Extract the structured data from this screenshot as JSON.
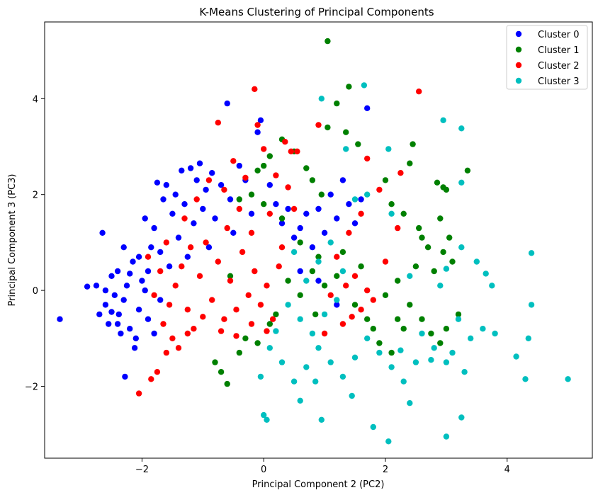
{
  "chart_data": {
    "type": "scatter",
    "title": "K-Means Clustering of Principal Components",
    "xlabel": "Principal Component 2 (PC2)",
    "ylabel": "Principal Component 3 (PC3)",
    "xlim": [
      -3.6,
      5.4
    ],
    "ylim": [
      -3.5,
      5.6
    ],
    "xticks": [
      -2,
      0,
      2,
      4
    ],
    "yticks": [
      -2,
      0,
      2,
      4
    ],
    "grid": false,
    "legend_position": "top-right",
    "series": [
      {
        "name": "Cluster 0",
        "color": "#0000ff",
        "points": [
          [
            -3.35,
            -0.6
          ],
          [
            -2.9,
            0.08
          ],
          [
            -2.75,
            0.1
          ],
          [
            -2.7,
            -0.5
          ],
          [
            -2.6,
            -0.3
          ],
          [
            -2.55,
            -0.7
          ],
          [
            -2.5,
            0.3
          ],
          [
            -2.45,
            -0.1
          ],
          [
            -2.4,
            0.4
          ],
          [
            -2.38,
            -0.5
          ],
          [
            -2.3,
            -0.2
          ],
          [
            -2.28,
            -1.8
          ],
          [
            -2.25,
            0.1
          ],
          [
            -2.2,
            -0.8
          ],
          [
            -2.15,
            0.6
          ],
          [
            -2.1,
            -1.0
          ],
          [
            -2.05,
            -0.4
          ],
          [
            -2.0,
            0.2
          ],
          [
            -1.95,
            1.5
          ],
          [
            -1.9,
            -0.6
          ],
          [
            -1.85,
            0.9
          ],
          [
            -1.8,
            1.3
          ],
          [
            -1.75,
            2.25
          ],
          [
            -1.7,
            -0.2
          ],
          [
            -1.65,
            1.9
          ],
          [
            -1.6,
            2.2
          ],
          [
            -1.55,
            0.5
          ],
          [
            -1.5,
            1.6
          ],
          [
            -1.45,
            2.0
          ],
          [
            -1.4,
            1.1
          ],
          [
            -1.35,
            2.5
          ],
          [
            -1.3,
            1.8
          ],
          [
            -1.25,
            0.7
          ],
          [
            -1.2,
            2.55
          ],
          [
            -1.15,
            1.4
          ],
          [
            -1.1,
            2.3
          ],
          [
            -1.05,
            2.65
          ],
          [
            -1.0,
            1.7
          ],
          [
            -0.95,
            2.1
          ],
          [
            -0.9,
            0.9
          ],
          [
            -0.85,
            2.45
          ],
          [
            -0.8,
            1.5
          ],
          [
            -0.7,
            2.2
          ],
          [
            -0.6,
            3.9
          ],
          [
            -0.55,
            1.9
          ],
          [
            -0.5,
            1.2
          ],
          [
            -0.4,
            2.6
          ],
          [
            -0.3,
            2.3
          ],
          [
            -0.2,
            1.6
          ],
          [
            -0.1,
            3.3
          ],
          [
            -0.05,
            3.55
          ],
          [
            0.1,
            2.2
          ],
          [
            0.2,
            1.8
          ],
          [
            0.3,
            1.4
          ],
          [
            0.4,
            1.7
          ],
          [
            0.5,
            1.1
          ],
          [
            0.6,
            1.3
          ],
          [
            0.7,
            1.6
          ],
          [
            0.8,
            0.9
          ],
          [
            0.9,
            1.7
          ],
          [
            1.0,
            1.2
          ],
          [
            1.1,
            2.0
          ],
          [
            1.2,
            1.5
          ],
          [
            1.3,
            2.3
          ],
          [
            1.4,
            1.8
          ],
          [
            1.5,
            1.4
          ],
          [
            1.6,
            1.9
          ],
          [
            1.7,
            3.8
          ],
          [
            0.6,
            0.4
          ],
          [
            0.9,
            0.2
          ],
          [
            1.2,
            -0.3
          ],
          [
            -2.6,
            0.0
          ],
          [
            -2.35,
            -0.9
          ],
          [
            -2.12,
            -1.2
          ],
          [
            -1.95,
            0.0
          ],
          [
            -1.8,
            -0.9
          ],
          [
            -2.5,
            -0.45
          ],
          [
            -2.4,
            -0.7
          ],
          [
            -2.2,
            0.35
          ],
          [
            -2.05,
            0.7
          ],
          [
            -1.9,
            0.4
          ],
          [
            -1.7,
            0.8
          ],
          [
            -2.3,
            0.9
          ],
          [
            -2.65,
            1.2
          ]
        ]
      },
      {
        "name": "Cluster 1",
        "color": "#008000",
        "points": [
          [
            1.05,
            5.2
          ],
          [
            1.4,
            4.25
          ],
          [
            1.2,
            3.9
          ],
          [
            1.35,
            3.3
          ],
          [
            1.05,
            3.4
          ],
          [
            1.55,
            3.05
          ],
          [
            2.45,
            3.05
          ],
          [
            3.35,
            2.5
          ],
          [
            2.85,
            2.25
          ],
          [
            2.95,
            2.15
          ],
          [
            2.4,
            2.65
          ],
          [
            2.0,
            2.3
          ],
          [
            2.1,
            1.8
          ],
          [
            2.3,
            1.6
          ],
          [
            2.55,
            1.3
          ],
          [
            2.7,
            0.9
          ],
          [
            2.9,
            1.5
          ],
          [
            3.05,
            1.1
          ],
          [
            3.1,
            0.6
          ],
          [
            2.8,
            0.4
          ],
          [
            2.95,
            0.8
          ],
          [
            2.5,
            0.5
          ],
          [
            2.2,
            0.2
          ],
          [
            2.0,
            -0.1
          ],
          [
            2.4,
            -0.3
          ],
          [
            2.6,
            -0.6
          ],
          [
            2.75,
            -0.9
          ],
          [
            2.9,
            -1.1
          ],
          [
            3.0,
            -0.8
          ],
          [
            3.2,
            -0.5
          ],
          [
            2.3,
            -0.8
          ],
          [
            2.1,
            -1.3
          ],
          [
            1.9,
            -1.1
          ],
          [
            1.7,
            -0.6
          ],
          [
            1.5,
            -0.3
          ],
          [
            1.2,
            0.3
          ],
          [
            0.9,
            0.7
          ],
          [
            0.6,
            1.0
          ],
          [
            0.3,
            1.5
          ],
          [
            0.0,
            1.8
          ],
          [
            -0.2,
            2.0
          ],
          [
            -0.4,
            1.9
          ],
          [
            0.3,
            3.15
          ],
          [
            0.1,
            2.8
          ],
          [
            -0.1,
            2.5
          ],
          [
            0.0,
            2.6
          ],
          [
            0.5,
            2.9
          ],
          [
            0.7,
            2.55
          ],
          [
            0.8,
            2.3
          ],
          [
            0.95,
            2.0
          ],
          [
            0.4,
            0.2
          ],
          [
            0.6,
            -0.1
          ],
          [
            0.8,
            0.4
          ],
          [
            1.0,
            0.1
          ],
          [
            0.2,
            -0.5
          ],
          [
            -0.1,
            -1.1
          ],
          [
            -0.4,
            -1.3
          ],
          [
            -0.7,
            -1.7
          ],
          [
            -0.6,
            -1.95
          ],
          [
            -0.8,
            -1.5
          ],
          [
            -0.3,
            -1.0
          ],
          [
            0.1,
            -0.7
          ],
          [
            1.3,
            0.8
          ],
          [
            1.6,
            0.5
          ],
          [
            1.8,
            -0.8
          ],
          [
            2.2,
            -0.6
          ],
          [
            3.0,
            2.1
          ],
          [
            2.6,
            1.1
          ],
          [
            -0.55,
            0.3
          ],
          [
            0.85,
            -0.5
          ]
        ]
      },
      {
        "name": "Cluster 2",
        "color": "#ff0000",
        "points": [
          [
            -1.85,
            -1.85
          ],
          [
            -2.05,
            -2.15
          ],
          [
            -1.75,
            -1.7
          ],
          [
            -1.6,
            -1.3
          ],
          [
            -1.5,
            -1.0
          ],
          [
            -1.4,
            -1.2
          ],
          [
            -1.65,
            -0.7
          ],
          [
            -1.55,
            -0.3
          ],
          [
            -1.45,
            0.1
          ],
          [
            -1.35,
            0.5
          ],
          [
            -1.25,
            -0.4
          ],
          [
            -1.15,
            -0.8
          ],
          [
            -1.05,
            0.3
          ],
          [
            -0.95,
            1.0
          ],
          [
            -0.85,
            -0.2
          ],
          [
            -0.75,
            0.6
          ],
          [
            -0.65,
            -0.6
          ],
          [
            -0.55,
            0.2
          ],
          [
            -0.45,
            -0.4
          ],
          [
            -0.35,
            0.8
          ],
          [
            -0.25,
            -0.1
          ],
          [
            -0.15,
            0.4
          ],
          [
            -0.05,
            -0.3
          ],
          [
            0.05,
            0.1
          ],
          [
            0.15,
            -0.6
          ],
          [
            0.25,
            0.5
          ],
          [
            -1.3,
            1.5
          ],
          [
            -1.1,
            1.9
          ],
          [
            -0.9,
            2.3
          ],
          [
            -0.75,
            3.5
          ],
          [
            -0.65,
            2.1
          ],
          [
            -0.5,
            2.7
          ],
          [
            -0.3,
            2.35
          ],
          [
            -0.15,
            4.2
          ],
          [
            -0.1,
            3.45
          ],
          [
            0.0,
            2.95
          ],
          [
            0.35,
            3.1
          ],
          [
            0.45,
            2.9
          ],
          [
            0.55,
            2.9
          ],
          [
            0.2,
            2.4
          ],
          [
            0.4,
            2.15
          ],
          [
            0.1,
            1.6
          ],
          [
            0.9,
            3.45
          ],
          [
            1.7,
            2.75
          ],
          [
            2.25,
            2.45
          ],
          [
            2.55,
            4.15
          ],
          [
            1.9,
            2.1
          ],
          [
            1.6,
            1.6
          ],
          [
            1.4,
            1.2
          ],
          [
            1.2,
            0.7
          ],
          [
            1.5,
            0.3
          ],
          [
            1.7,
            0.0
          ],
          [
            1.6,
            -0.4
          ],
          [
            1.3,
            -0.7
          ],
          [
            1.0,
            -0.9
          ],
          [
            1.8,
            -0.2
          ],
          [
            2.0,
            0.6
          ],
          [
            2.2,
            1.3
          ],
          [
            1.1,
            -0.1
          ],
          [
            1.35,
            0.1
          ],
          [
            -1.8,
            -0.1
          ],
          [
            -1.7,
            0.4
          ],
          [
            -1.9,
            0.7
          ],
          [
            -1.6,
            1.0
          ],
          [
            -1.2,
            0.9
          ],
          [
            -0.6,
            1.3
          ],
          [
            -0.4,
            1.7
          ],
          [
            -0.2,
            1.2
          ],
          [
            0.3,
            0.9
          ],
          [
            0.5,
            1.7
          ],
          [
            -1.25,
            -0.9
          ],
          [
            -1.0,
            -0.55
          ],
          [
            -0.7,
            -0.85
          ],
          [
            -0.45,
            -0.95
          ],
          [
            -0.2,
            -0.7
          ],
          [
            0.05,
            -0.85
          ],
          [
            1.45,
            -0.55
          ]
        ]
      },
      {
        "name": "Cluster 3",
        "color": "#00bfbf",
        "points": [
          [
            0.95,
            4.0
          ],
          [
            1.65,
            4.28
          ],
          [
            2.05,
            2.95
          ],
          [
            1.35,
            2.95
          ],
          [
            2.95,
            3.55
          ],
          [
            3.25,
            3.38
          ],
          [
            3.25,
            2.25
          ],
          [
            4.4,
            0.78
          ],
          [
            3.75,
            0.1
          ],
          [
            3.5,
            0.6
          ],
          [
            3.65,
            0.35
          ],
          [
            3.8,
            -0.9
          ],
          [
            4.4,
            -0.3
          ],
          [
            4.35,
            -1.0
          ],
          [
            4.15,
            -1.38
          ],
          [
            4.3,
            -1.85
          ],
          [
            5.0,
            -1.85
          ],
          [
            3.2,
            -0.6
          ],
          [
            3.4,
            -1.0
          ],
          [
            3.6,
            -0.8
          ],
          [
            3.1,
            -1.3
          ],
          [
            3.3,
            -1.7
          ],
          [
            3.0,
            -1.5
          ],
          [
            2.8,
            -1.2
          ],
          [
            2.6,
            -0.9
          ],
          [
            2.5,
            -1.5
          ],
          [
            2.3,
            -1.9
          ],
          [
            2.1,
            -1.6
          ],
          [
            1.9,
            -1.3
          ],
          [
            1.7,
            -1.0
          ],
          [
            1.5,
            -1.4
          ],
          [
            1.3,
            -1.8
          ],
          [
            1.1,
            -1.5
          ],
          [
            0.9,
            -1.2
          ],
          [
            0.7,
            -1.6
          ],
          [
            0.5,
            -1.9
          ],
          [
            0.3,
            -1.5
          ],
          [
            0.1,
            -1.2
          ],
          [
            -0.05,
            -1.8
          ],
          [
            0.0,
            -2.6
          ],
          [
            0.05,
            -2.7
          ],
          [
            0.95,
            -2.7
          ],
          [
            1.8,
            -2.85
          ],
          [
            2.05,
            -3.15
          ],
          [
            3.0,
            -3.05
          ],
          [
            3.25,
            -2.65
          ],
          [
            2.4,
            -2.35
          ],
          [
            1.45,
            -2.2
          ],
          [
            0.6,
            -2.3
          ],
          [
            0.4,
            -0.3
          ],
          [
            0.6,
            -0.6
          ],
          [
            0.8,
            -0.9
          ],
          [
            1.0,
            -0.5
          ],
          [
            1.2,
            -0.2
          ],
          [
            0.7,
            0.2
          ],
          [
            0.9,
            0.6
          ],
          [
            1.1,
            1.0
          ],
          [
            1.3,
            0.4
          ],
          [
            0.5,
            0.8
          ],
          [
            1.5,
            1.9
          ],
          [
            1.7,
            2.0
          ],
          [
            2.1,
            1.6
          ],
          [
            3.25,
            0.9
          ],
          [
            2.9,
            0.1
          ],
          [
            3.0,
            0.45
          ],
          [
            2.4,
            0.3
          ],
          [
            2.75,
            -1.45
          ],
          [
            0.2,
            -0.85
          ],
          [
            0.85,
            -1.9
          ],
          [
            2.25,
            -1.25
          ]
        ]
      }
    ]
  }
}
